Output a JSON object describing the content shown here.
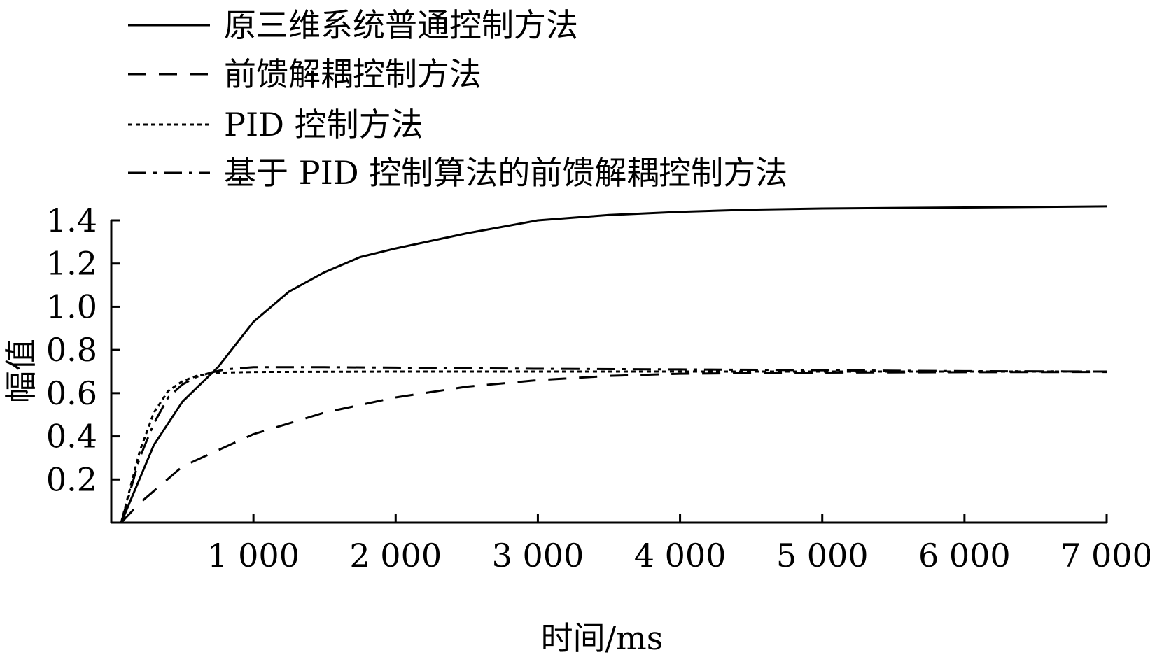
{
  "chart_data": {
    "type": "line",
    "xlabel": "时间/ms",
    "ylabel": "幅值",
    "xlim": [
      0,
      7000
    ],
    "ylim": [
      0,
      1.4
    ],
    "x_ticks": [
      1000,
      2000,
      3000,
      4000,
      5000,
      6000,
      7000
    ],
    "x_tick_labels": [
      "1 000",
      "2 000",
      "3 000",
      "4 000",
      "5 000",
      "6 000",
      "7 000"
    ],
    "y_ticks": [
      0.2,
      0.4,
      0.6,
      0.8,
      1.0,
      1.2,
      1.4
    ],
    "y_tick_labels": [
      "0.2",
      "0.4",
      "0.6",
      "0.8",
      "1.0",
      "1.2",
      "1.4"
    ],
    "grid": false,
    "legend_position": "top-left",
    "series": [
      {
        "name": "原三维系统普通控制方法",
        "line_style": "solid",
        "x": [
          70,
          300,
          500,
          750,
          1000,
          1250,
          1500,
          1750,
          2000,
          2500,
          3000,
          3500,
          4000,
          4500,
          5000,
          6000,
          7000
        ],
        "y": [
          0.0,
          0.36,
          0.56,
          0.72,
          0.93,
          1.07,
          1.16,
          1.23,
          1.27,
          1.34,
          1.4,
          1.425,
          1.44,
          1.45,
          1.455,
          1.46,
          1.465
        ]
      },
      {
        "name": "前馈解耦控制方法",
        "line_style": "dashed",
        "x": [
          70,
          200,
          500,
          1000,
          1500,
          2000,
          2500,
          3000,
          3500,
          4000,
          5000,
          6000,
          7000
        ],
        "y": [
          0.0,
          0.09,
          0.26,
          0.41,
          0.51,
          0.58,
          0.63,
          0.66,
          0.68,
          0.69,
          0.695,
          0.697,
          0.698
        ]
      },
      {
        "name": "PID 控制方法",
        "line_style": "dotted",
        "x": [
          70,
          200,
          300,
          400,
          500,
          600,
          700,
          800,
          1000,
          1500,
          2000,
          3000,
          4000,
          5000,
          6000,
          7000
        ],
        "y": [
          0.0,
          0.33,
          0.51,
          0.61,
          0.655,
          0.68,
          0.69,
          0.695,
          0.698,
          0.699,
          0.7,
          0.7,
          0.7,
          0.7,
          0.7,
          0.7
        ]
      },
      {
        "name": "基于 PID 控制算法的前馈解耦控制方法",
        "line_style": "dash-dot",
        "x": [
          70,
          200,
          300,
          400,
          500,
          600,
          700,
          800,
          900,
          1000,
          1500,
          2000,
          3000,
          4000,
          5000,
          6000,
          7000
        ],
        "y": [
          0.0,
          0.3,
          0.46,
          0.58,
          0.64,
          0.675,
          0.695,
          0.71,
          0.715,
          0.72,
          0.72,
          0.718,
          0.713,
          0.71,
          0.706,
          0.702,
          0.7
        ]
      }
    ]
  }
}
